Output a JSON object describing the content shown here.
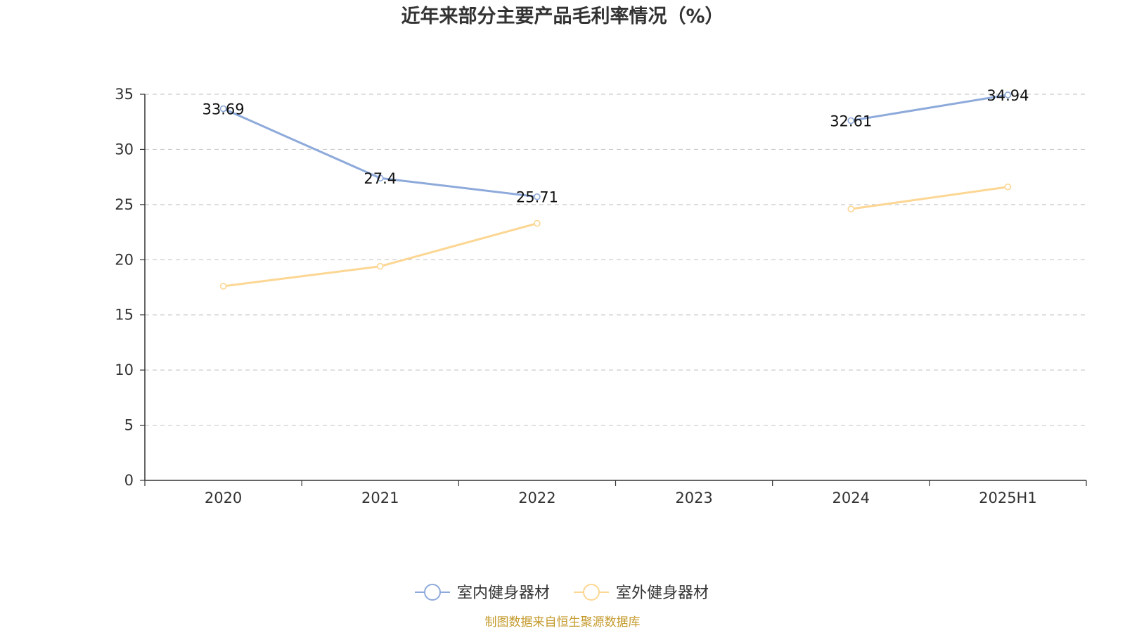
{
  "chart_data": {
    "type": "line",
    "title": "近年来部分主要产品毛利率情况（%）",
    "categories": [
      "2020",
      "2021",
      "2022",
      "2023",
      "2024",
      "2025H1"
    ],
    "ylim": [
      0,
      35
    ],
    "yticks": [
      0,
      5,
      10,
      15,
      20,
      25,
      30,
      35
    ],
    "grid": true,
    "legend_position": "bottom-center",
    "series": [
      {
        "name": "室内健身器材",
        "color": "#8eaadb",
        "values": [
          33.69,
          27.4,
          25.71,
          null,
          32.61,
          34.94
        ],
        "labels": [
          "33.69",
          "27.4",
          "25.71",
          "",
          "32.61",
          "34.94"
        ]
      },
      {
        "name": "室外健身器材",
        "color": "#fcd693",
        "values": [
          17.6,
          19.4,
          23.3,
          null,
          24.6,
          26.6
        ],
        "labels": [
          "",
          "",
          "",
          "",
          "",
          ""
        ]
      }
    ],
    "source": "制图数据来自恒生聚源数据库"
  }
}
